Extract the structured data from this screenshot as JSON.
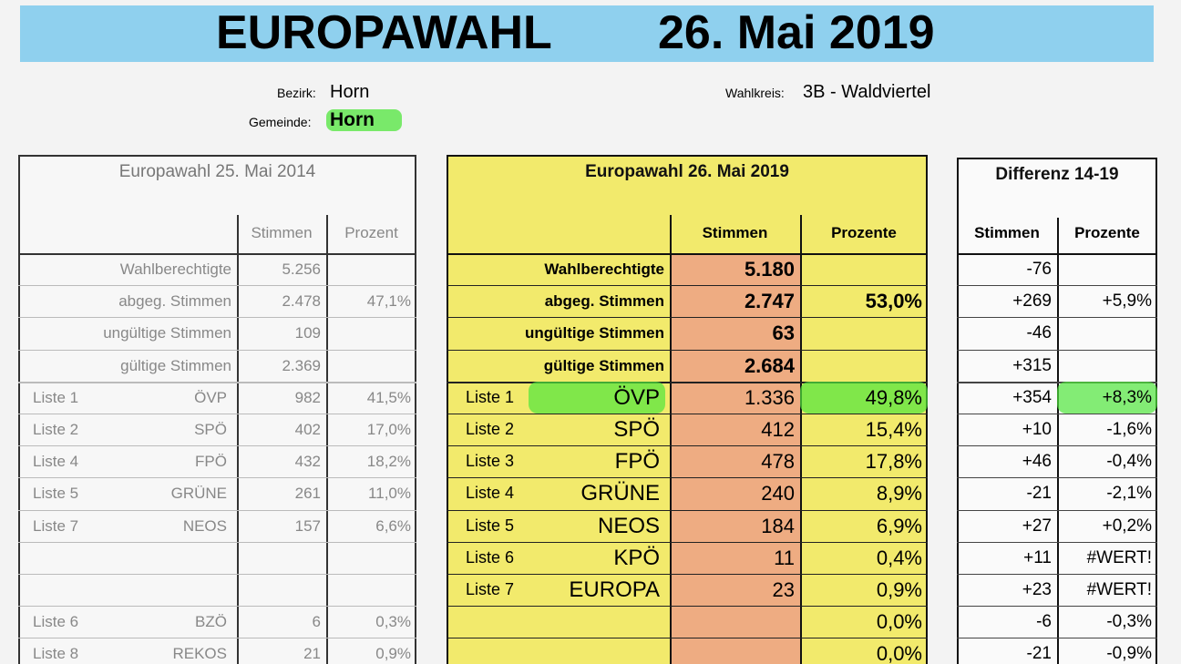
{
  "header": {
    "title": "EUROPAWAHL",
    "date": "26. Mai 2019"
  },
  "info": {
    "bezirk_label": "Bezirk:",
    "bezirk": "Horn",
    "gemeinde_label": "Gemeinde:",
    "gemeinde": "Horn",
    "wahlkreis_label": "Wahlkreis:",
    "wahlkreis": "3B - Waldviertel"
  },
  "table_2014": {
    "title": "Europawahl 25. Mai 2014",
    "headers": [
      "Stimmen",
      "Prozent"
    ],
    "summary": [
      {
        "label": "Wahlberechtigte",
        "stimmen": "5.256"
      },
      {
        "label": "abgeg. Stimmen",
        "stimmen": "2.478",
        "prozent": "47,1%"
      },
      {
        "label": "ungültige Stimmen",
        "stimmen": "109"
      },
      {
        "label": "gültige Stimmen",
        "stimmen": "2.369"
      }
    ],
    "parties": [
      {
        "liste": "Liste 1",
        "partei": "ÖVP",
        "stimmen": "982",
        "prozent": "41,5%"
      },
      {
        "liste": "Liste 2",
        "partei": "SPÖ",
        "stimmen": "402",
        "prozent": "17,0%"
      },
      {
        "liste": "Liste 4",
        "partei": "FPÖ",
        "stimmen": "432",
        "prozent": "18,2%"
      },
      {
        "liste": "Liste 5",
        "partei": "GRÜNE",
        "stimmen": "261",
        "prozent": "11,0%"
      },
      {
        "liste": "Liste 7",
        "partei": "NEOS",
        "stimmen": "157",
        "prozent": "6,6%"
      }
    ],
    "other_parties": [
      {
        "liste": "Liste 6",
        "partei": "BZÖ",
        "stimmen": "6",
        "prozent": "0,3%"
      },
      {
        "liste": "Liste 8",
        "partei": "REKOS",
        "stimmen": "21",
        "prozent": "0,9%"
      }
    ]
  },
  "table_2019": {
    "title": "Europawahl 26. Mai 2019",
    "headers": [
      "Stimmen",
      "Prozente"
    ],
    "summary": [
      {
        "label": "Wahlberechtigte",
        "stimmen": "5.180"
      },
      {
        "label": "abgeg. Stimmen",
        "stimmen": "2.747",
        "prozent": "53,0%"
      },
      {
        "label": "ungültige Stimmen",
        "stimmen": "63"
      },
      {
        "label": "gültige Stimmen",
        "stimmen": "2.684"
      }
    ],
    "parties": [
      {
        "liste": "Liste 1",
        "partei": "ÖVP",
        "stimmen": "1.336",
        "prozent": "49,8%"
      },
      {
        "liste": "Liste 2",
        "partei": "SPÖ",
        "stimmen": "412",
        "prozent": "15,4%"
      },
      {
        "liste": "Liste 3",
        "partei": "FPÖ",
        "stimmen": "478",
        "prozent": "17,8%"
      },
      {
        "liste": "Liste 4",
        "partei": "GRÜNE",
        "stimmen": "240",
        "prozent": "8,9%"
      },
      {
        "liste": "Liste 5",
        "partei": "NEOS",
        "stimmen": "184",
        "prozent": "6,9%"
      },
      {
        "liste": "Liste 6",
        "partei": "KPÖ",
        "stimmen": "11",
        "prozent": "0,4%"
      },
      {
        "liste": "Liste 7",
        "partei": "EUROPA",
        "stimmen": "23",
        "prozent": "0,9%"
      }
    ],
    "extra": [
      {
        "prozent": "0,0%"
      },
      {
        "prozent": "0,0%"
      }
    ]
  },
  "table_diff": {
    "title": "Differenz 14-19",
    "headers": [
      "Stimmen",
      "Prozente"
    ],
    "rows": [
      {
        "stimmen": "-76"
      },
      {
        "stimmen": "+269",
        "prozent": "+5,9%"
      },
      {
        "stimmen": "-46"
      },
      {
        "stimmen": "+315"
      },
      {
        "stimmen": "+354",
        "prozent": "+8,3%"
      },
      {
        "stimmen": "+10",
        "prozent": "-1,6%"
      },
      {
        "stimmen": "+46",
        "prozent": "-0,4%"
      },
      {
        "stimmen": "-21",
        "prozent": "-2,1%"
      },
      {
        "stimmen": "+27",
        "prozent": "+0,2%"
      },
      {
        "stimmen": "+11",
        "prozent": "#WERT!"
      },
      {
        "stimmen": "+23",
        "prozent": "#WERT!"
      },
      {
        "stimmen": "-6",
        "prozent": "-0,3%"
      },
      {
        "stimmen": "-21",
        "prozent": "-0,9%"
      }
    ]
  }
}
